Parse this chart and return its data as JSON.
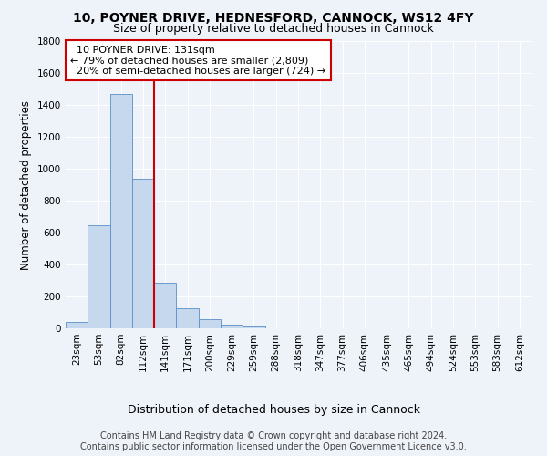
{
  "title_line1": "10, POYNER DRIVE, HEDNESFORD, CANNOCK, WS12 4FY",
  "title_line2": "Size of property relative to detached houses in Cannock",
  "xlabel": "Distribution of detached houses by size in Cannock",
  "ylabel": "Number of detached properties",
  "categories": [
    "23sqm",
    "53sqm",
    "82sqm",
    "112sqm",
    "141sqm",
    "171sqm",
    "200sqm",
    "229sqm",
    "259sqm",
    "288sqm",
    "318sqm",
    "347sqm",
    "377sqm",
    "406sqm",
    "435sqm",
    "465sqm",
    "494sqm",
    "524sqm",
    "553sqm",
    "583sqm",
    "612sqm"
  ],
  "values": [
    38,
    648,
    1468,
    935,
    283,
    125,
    57,
    22,
    10,
    0,
    0,
    0,
    0,
    0,
    0,
    0,
    0,
    0,
    0,
    0,
    0
  ],
  "bar_color": "#c5d8ee",
  "bar_edgecolor": "#5b8fc9",
  "bar_linewidth": 0.6,
  "vline_x": 3.5,
  "vline_color": "#cc0000",
  "annotation_text": "  10 POYNER DRIVE: 131sqm\n← 79% of detached houses are smaller (2,809)\n  20% of semi-detached houses are larger (724) →",
  "annotation_box_color": "#ffffff",
  "annotation_box_edgecolor": "#cc0000",
  "ylim": [
    0,
    1800
  ],
  "yticks": [
    0,
    200,
    400,
    600,
    800,
    1000,
    1200,
    1400,
    1600,
    1800
  ],
  "background_color": "#eef2f9",
  "grid_color": "#ffffff",
  "footer_text": "Contains HM Land Registry data © Crown copyright and database right 2024.\nContains public sector information licensed under the Open Government Licence v3.0.",
  "title_fontsize": 10,
  "subtitle_fontsize": 9,
  "annotation_fontsize": 8,
  "tick_fontsize": 7.5,
  "ylabel_fontsize": 8.5,
  "xlabel_fontsize": 9,
  "footer_fontsize": 7
}
